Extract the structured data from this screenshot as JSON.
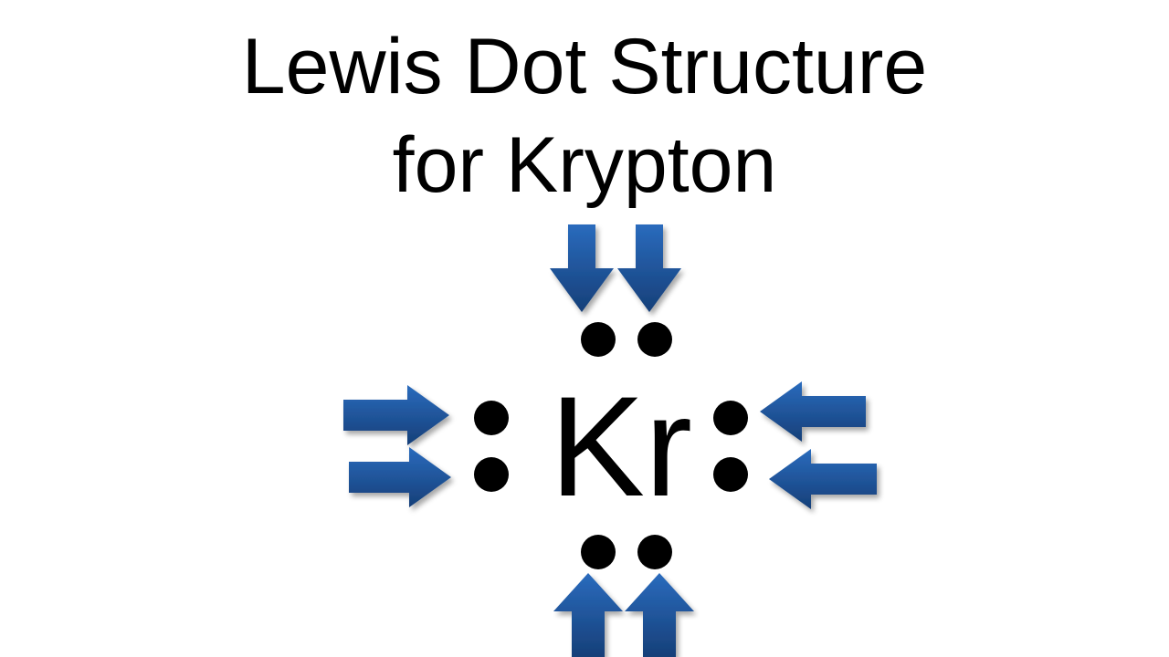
{
  "title": {
    "line1": "Lewis Dot Structure",
    "line2": "for Krypton"
  },
  "atom": {
    "symbol": "Kr",
    "valence_electrons": 8,
    "electron_pairs": [
      "top",
      "left",
      "right",
      "bottom"
    ]
  },
  "colors": {
    "text": "#000000",
    "dot": "#000000",
    "arrow": "#1f5aa6",
    "arrow_dark": "#163f78",
    "background": "#ffffff"
  },
  "arrows": {
    "icon": "arrow-icon",
    "pairs": [
      "top",
      "left",
      "right",
      "bottom"
    ],
    "per_pair": 2,
    "direction": "pointing toward each electron pair"
  }
}
